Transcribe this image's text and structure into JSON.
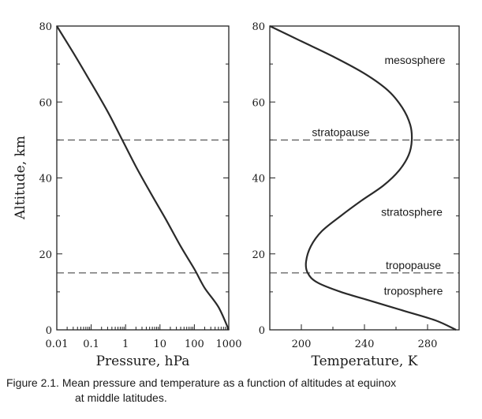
{
  "caption": {
    "line1": "Figure 2.1.  Mean pressure and temperature as a function of altitudes at equinox",
    "line2": "at middle latitudes."
  },
  "chart_data": [
    {
      "type": "line",
      "xlabel": "Pressure, hPa",
      "ylabel": "Altitude, km",
      "xscale": "log",
      "xlim": [
        0.01,
        1000
      ],
      "ylim": [
        0,
        80
      ],
      "x_ticks": [
        "0.01",
        "0.1",
        "1",
        "10",
        "100",
        "1000"
      ],
      "y_ticks": [
        "0",
        "20",
        "40",
        "60",
        "80"
      ],
      "hlines": [
        50,
        15
      ],
      "series": [
        {
          "x": [
            0.01,
            0.03,
            0.1,
            0.3,
            0.8,
            2,
            5,
            15,
            40,
            100,
            200,
            500,
            1000
          ],
          "y": [
            80,
            73,
            65,
            57.5,
            50,
            43,
            36.5,
            29,
            22,
            16,
            11,
            6,
            0
          ]
        }
      ]
    },
    {
      "type": "line",
      "xlabel": "Temperature, K",
      "xlim": [
        180,
        300
      ],
      "ylim": [
        0,
        80
      ],
      "x_ticks": [
        "200",
        "240",
        "280"
      ],
      "y_ticks": [
        "0",
        "20",
        "40",
        "60",
        "80"
      ],
      "hlines": [
        50,
        15
      ],
      "annotations": [
        {
          "text": "mesosphere",
          "x": 272,
          "y": 70
        },
        {
          "text": "stratopause",
          "x": 225,
          "y": 51
        },
        {
          "text": "stratosphere",
          "x": 270,
          "y": 30
        },
        {
          "text": "tropopause",
          "x": 271,
          "y": 16
        },
        {
          "text": "troposphere",
          "x": 271,
          "y": 9.2
        }
      ],
      "series": [
        {
          "x": [
            180,
            200,
            220,
            240,
            255,
            264,
            269,
            270,
            268,
            262,
            252,
            238,
            225,
            213,
            206,
            203,
            204,
            210,
            225,
            245,
            265,
            285,
            298
          ],
          "y": [
            80,
            76,
            72,
            67.5,
            63,
            58.5,
            54,
            50,
            46,
            42,
            38,
            34,
            30,
            26,
            22,
            18,
            15,
            12.5,
            10,
            7.5,
            5,
            2.5,
            0
          ]
        }
      ]
    }
  ]
}
